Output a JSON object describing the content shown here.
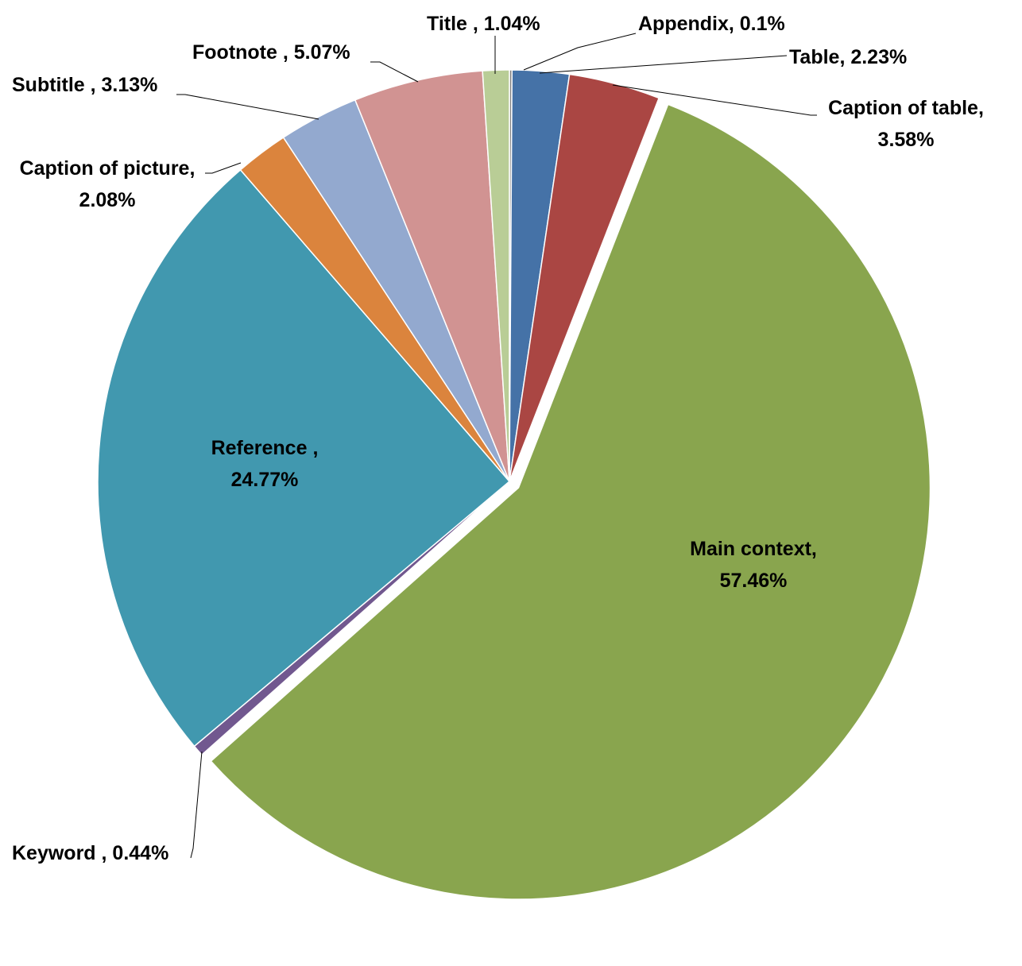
{
  "chart_data": {
    "type": "pie",
    "slices": [
      {
        "name": "Appendix",
        "value": 0.1,
        "label": "Appendix, 0.1%",
        "color": "#7f7f7f"
      },
      {
        "name": "Table",
        "value": 2.23,
        "label": "Table,   2.23%",
        "color": "#4572a7"
      },
      {
        "name": "Caption of table",
        "value": 3.58,
        "label_lines": [
          "Caption of table,",
          "3.58%"
        ],
        "color": "#aa4643"
      },
      {
        "name": "Main context",
        "value": 57.46,
        "label_lines": [
          "Main context,",
          "57.46%"
        ],
        "color": "#89a54e",
        "exploded": true
      },
      {
        "name": "Keyword",
        "value": 0.44,
        "label": "Keyword , 0.44%",
        "color": "#71588f"
      },
      {
        "name": "Reference",
        "value": 24.77,
        "label_lines": [
          "Reference ,",
          "24.77%"
        ],
        "color": "#4198af"
      },
      {
        "name": "Caption of picture",
        "value": 2.08,
        "label_lines": [
          "Caption of picture,",
          "2.08%"
        ],
        "color": "#db843d"
      },
      {
        "name": "Subtitle",
        "value": 3.13,
        "label": "Subtitle , 3.13%",
        "color": "#93a9cf"
      },
      {
        "name": "Footnote",
        "value": 5.07,
        "label": "Footnote , 5.07%",
        "color": "#d19392"
      },
      {
        "name": "Title",
        "value": 1.04,
        "label": "Title ,  1.04%",
        "color": "#b9cd96"
      }
    ]
  }
}
